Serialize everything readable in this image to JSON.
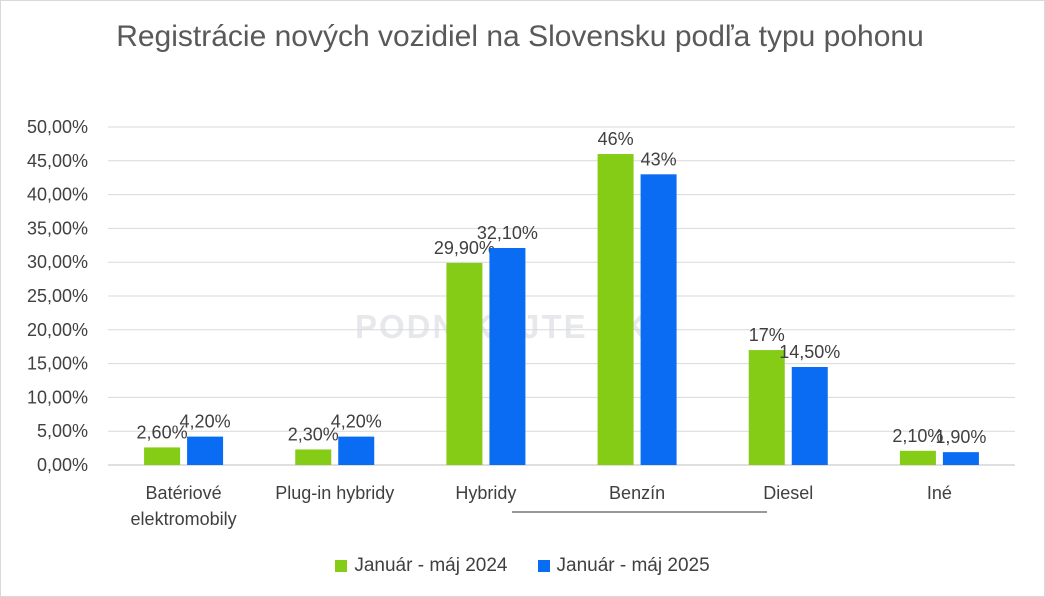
{
  "chart_data": {
    "type": "bar",
    "title": "Registrácie nových vozidiel na Slovensku podľa typu pohonu",
    "categories": [
      [
        "Batériové",
        "elektromobily"
      ],
      [
        "Plug-in hybridy"
      ],
      [
        "Hybridy"
      ],
      [
        "Benzín"
      ],
      [
        "Diesel"
      ],
      [
        "Iné"
      ]
    ],
    "series": [
      {
        "name": "Január - máj 2024",
        "color": "#84cc16",
        "values": [
          2.6,
          2.3,
          29.9,
          46,
          17,
          2.1
        ],
        "labels": [
          "2,60%",
          "2,30%",
          "29,90%",
          "46%",
          "17%",
          "2,10%"
        ]
      },
      {
        "name": "Január - máj 2025",
        "color": "#0a6cf2",
        "values": [
          4.2,
          4.2,
          32.1,
          43,
          14.5,
          1.9
        ],
        "labels": [
          "4,20%",
          "4,20%",
          "32,10%",
          "43%",
          "14,50%",
          "1,90%"
        ]
      }
    ],
    "yticks": [
      "0,00%",
      "5,00%",
      "10,00%",
      "15,00%",
      "20,00%",
      "25,00%",
      "30,00%",
      "35,00%",
      "40,00%",
      "45,00%",
      "50,00%"
    ],
    "ylim": [
      0,
      50
    ],
    "grid": true,
    "legend": "bottom"
  },
  "watermark": "PODNIKAJTE SK"
}
